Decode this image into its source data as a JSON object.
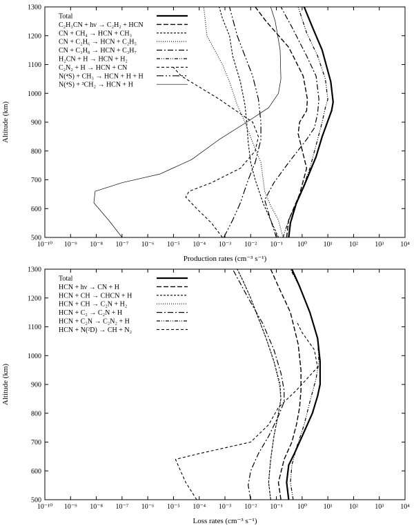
{
  "chart_data": [
    {
      "type": "line",
      "xlabel": "Production rates (cm⁻³ s⁻¹)",
      "ylabel": "Altitude (km)",
      "xscale": "log",
      "xlim": [
        1e-10,
        10000
      ],
      "ylim": [
        500,
        1300
      ],
      "x_ticks": [
        "10⁻¹⁰",
        "10⁻⁹",
        "10⁻⁸",
        "10⁻⁷",
        "10⁻⁶",
        "10⁻⁵",
        "10⁻⁴",
        "10⁻³",
        "10⁻²",
        "10⁻¹",
        "10⁰",
        "10¹",
        "10²",
        "10³",
        "10⁴"
      ],
      "y_ticks": [
        "500",
        "600",
        "700",
        "800",
        "900",
        "1000",
        "1100",
        "1200",
        "1300"
      ],
      "legend_position": "top-left",
      "series": [
        {
          "name": "Total",
          "dash": "solid",
          "width": 2.2,
          "points": [
            [
              0.3,
              500
            ],
            [
              0.35,
              550
            ],
            [
              0.6,
              620
            ],
            [
              1.2,
              680
            ],
            [
              3.5,
              780
            ],
            [
              6,
              850
            ],
            [
              8,
              880
            ],
            [
              14,
              940
            ],
            [
              16,
              970
            ],
            [
              13,
              1040
            ],
            [
              6,
              1150
            ],
            [
              2.5,
              1230
            ],
            [
              1.2,
              1300
            ]
          ]
        },
        {
          "name": "C₂H₃CN + hν → C₂H₂ + HCN",
          "dash": "7,3",
          "width": 1.4,
          "points": [
            [
              0.25,
              500
            ],
            [
              0.3,
              560
            ],
            [
              0.8,
              650
            ],
            [
              1.5,
              740
            ],
            [
              0.7,
              860
            ],
            [
              0.8,
              900
            ],
            [
              1.5,
              940
            ],
            [
              1.6,
              980
            ],
            [
              1.1,
              1060
            ],
            [
              0.3,
              1160
            ],
            [
              0.04,
              1250
            ],
            [
              0.015,
              1300
            ]
          ]
        },
        {
          "name": "CN + CH₄ → HCN + CH₃",
          "dash": "3,2",
          "width": 1.1,
          "points": [
            [
              0.12,
              500
            ],
            [
              0.06,
              560
            ],
            [
              0.03,
              620
            ],
            [
              0.015,
              700
            ],
            [
              0.01,
              760
            ],
            [
              0.008,
              830
            ],
            [
              0.007,
              900
            ],
            [
              0.006,
              960
            ],
            [
              0.004,
              1040
            ],
            [
              0.002,
              1130
            ],
            [
              0.0015,
              1200
            ],
            [
              0.0008,
              1260
            ],
            [
              0.0006,
              1300
            ]
          ]
        },
        {
          "name": "CN + C₂H₆ → HCN + C₂H₅",
          "dash": "1,2",
          "width": 1.1,
          "points": [
            [
              0.18,
              500
            ],
            [
              0.12,
              560
            ],
            [
              0.06,
              610
            ],
            [
              0.035,
              660
            ],
            [
              0.025,
              760
            ],
            [
              0.012,
              830
            ],
            [
              0.006,
              900
            ],
            [
              0.003,
              960
            ],
            [
              0.0015,
              1040
            ],
            [
              0.0008,
              1100
            ],
            [
              0.0004,
              1150
            ],
            [
              0.0002,
              1200
            ],
            [
              0.00015,
              1300
            ]
          ]
        },
        {
          "name": "CN + C₃H₈ → HCN + C₃H₇",
          "dash": "8,3,2,3",
          "width": 1.2,
          "points": [
            [
              0.1,
              500
            ],
            [
              0.06,
              560
            ],
            [
              0.035,
              630
            ],
            [
              0.08,
              690
            ],
            [
              0.3,
              760
            ],
            [
              1.5,
              840
            ],
            [
              3,
              880
            ],
            [
              4,
              930
            ],
            [
              4.5,
              980
            ],
            [
              3.5,
              1060
            ],
            [
              1.5,
              1130
            ],
            [
              0.4,
              1230
            ],
            [
              0.15,
              1300
            ]
          ]
        },
        {
          "name": "H₂CN + H → HCN + H₂",
          "dash": "5,2,1,2,1,2",
          "width": 1.2,
          "points": [
            [
              0.18,
              500
            ],
            [
              0.3,
              560
            ],
            [
              0.8,
              640
            ],
            [
              2,
              740
            ],
            [
              4,
              840
            ],
            [
              6,
              900
            ],
            [
              8,
              950
            ],
            [
              10,
              980
            ],
            [
              8,
              1050
            ],
            [
              4,
              1130
            ],
            [
              1.5,
              1210
            ],
            [
              0.7,
              1300
            ]
          ]
        },
        {
          "name": "C₂N₂ + H → HCN + CN",
          "dash": "4,3",
          "width": 1.1,
          "points": [
            [
              0.0008,
              500
            ],
            [
              0.0003,
              550
            ],
            [
              8e-05,
              600
            ],
            [
              3e-05,
              640
            ],
            [
              4e-05,
              660
            ],
            [
              0.0003,
              690
            ],
            [
              0.004,
              740
            ],
            [
              0.015,
              800
            ],
            [
              0.02,
              850
            ],
            [
              0.012,
              900
            ],
            [
              0.0006,
              980
            ],
            [
              2e-05,
              1060
            ],
            [
              1e-05,
              1090
            ]
          ]
        },
        {
          "name": "N(⁴S) + CH₃ → HCN + H + H",
          "dash": "10,3,2,3,2,3",
          "width": 1.2,
          "points": [
            [
              0.0009,
              500
            ],
            [
              0.002,
              560
            ],
            [
              0.004,
              620
            ],
            [
              0.008,
              700
            ],
            [
              0.015,
              760
            ],
            [
              0.025,
              840
            ],
            [
              0.025,
              900
            ],
            [
              0.02,
              980
            ],
            [
              0.012,
              1060
            ],
            [
              0.006,
              1130
            ],
            [
              0.003,
              1200
            ],
            [
              0.0015,
              1300
            ]
          ]
        },
        {
          "name": "N(⁴S) + ³CH₂ → HCN + H",
          "dash": "solid",
          "width": 0.7,
          "points": [
            [
              1e-07,
              500
            ],
            [
              3e-08,
              560
            ],
            [
              8e-09,
              620
            ],
            [
              9e-09,
              660
            ],
            [
              1e-07,
              690
            ],
            [
              3e-06,
              720
            ],
            [
              5e-05,
              770
            ],
            [
              0.0006,
              840
            ],
            [
              0.007,
              900
            ],
            [
              0.05,
              950
            ],
            [
              0.12,
              1000
            ],
            [
              0.15,
              1050
            ],
            [
              0.14,
              1150
            ],
            [
              0.09,
              1250
            ],
            [
              0.06,
              1300
            ]
          ]
        }
      ]
    },
    {
      "type": "line",
      "xlabel": "Loss rates (cm⁻³ s⁻¹)",
      "ylabel": "Altitude (km)",
      "xscale": "log",
      "xlim": [
        1e-10,
        10000
      ],
      "ylim": [
        500,
        1300
      ],
      "x_ticks": [
        "10⁻¹⁰",
        "10⁻⁹",
        "10⁻⁸",
        "10⁻⁷",
        "10⁻⁶",
        "10⁻⁵",
        "10⁻⁴",
        "10⁻³",
        "10⁻²",
        "10⁻¹",
        "10⁰",
        "10¹",
        "10²",
        "10³",
        "10⁴"
      ],
      "y_ticks": [
        "500",
        "600",
        "700",
        "800",
        "900",
        "1000",
        "1100",
        "1200",
        "1300"
      ],
      "legend_position": "top-left",
      "series": [
        {
          "name": "Total",
          "dash": "solid",
          "width": 2.2,
          "points": [
            [
              0.3,
              500
            ],
            [
              0.25,
              560
            ],
            [
              0.3,
              620
            ],
            [
              0.5,
              660
            ],
            [
              1,
              720
            ],
            [
              2.5,
              800
            ],
            [
              4,
              860
            ],
            [
              5,
              900
            ],
            [
              5,
              980
            ],
            [
              4,
              1060
            ],
            [
              2,
              1150
            ],
            [
              0.8,
              1240
            ],
            [
              0.4,
              1300
            ]
          ]
        },
        {
          "name": "HCN + hν → CN + H",
          "dash": "7,3",
          "width": 1.4,
          "points": [
            [
              0.15,
              500
            ],
            [
              0.12,
              560
            ],
            [
              0.2,
              640
            ],
            [
              0.4,
              700
            ],
            [
              0.6,
              760
            ],
            [
              0.8,
              820
            ],
            [
              0.9,
              880
            ],
            [
              0.9,
              950
            ],
            [
              0.7,
              1040
            ],
            [
              0.35,
              1150
            ],
            [
              0.12,
              1240
            ],
            [
              0.06,
              1300
            ]
          ]
        },
        {
          "name": "HCN + CH → CHCN + H",
          "dash": "3,2",
          "width": 1.1,
          "points": [
            [
              0.06,
              500
            ],
            [
              0.05,
              560
            ],
            [
              0.06,
              640
            ],
            [
              0.08,
              720
            ],
            [
              0.12,
              800
            ],
            [
              0.15,
              850
            ],
            [
              0.14,
              900
            ],
            [
              0.08,
              980
            ],
            [
              0.04,
              1060
            ],
            [
              0.02,
              1130
            ],
            [
              0.01,
              1200
            ],
            [
              0.005,
              1260
            ],
            [
              0.003,
              1300
            ]
          ]
        },
        {
          "name": "HCN + CH → C₂N + H₂",
          "dash": "1,2",
          "width": 1.1,
          "points": [
            [
              0.06,
              500
            ],
            [
              0.05,
              560
            ],
            [
              0.06,
              640
            ],
            [
              0.08,
              720
            ],
            [
              0.12,
              800
            ],
            [
              0.15,
              850
            ],
            [
              0.13,
              900
            ],
            [
              0.08,
              980
            ],
            [
              0.04,
              1060
            ],
            [
              0.02,
              1130
            ],
            [
              0.01,
              1200
            ],
            [
              0.005,
              1260
            ],
            [
              0.003,
              1300
            ]
          ]
        },
        {
          "name": "HCN + C₂ → C₂N + H",
          "dash": "8,3,2,3",
          "width": 1.2,
          "points": [
            [
              0.01,
              500
            ],
            [
              0.008,
              550
            ],
            [
              0.01,
              600
            ],
            [
              0.02,
              660
            ],
            [
              0.05,
              720
            ],
            [
              0.12,
              790
            ],
            [
              0.2,
              840
            ],
            [
              0.2,
              880
            ],
            [
              0.15,
              940
            ],
            [
              0.08,
              1020
            ],
            [
              0.03,
              1110
            ],
            [
              0.008,
              1200
            ],
            [
              0.002,
              1300
            ]
          ]
        },
        {
          "name": "HCN + C₂N → C₂N₂ + H",
          "dash": "5,2,1,2,1,2",
          "width": 1.2,
          "points": [
            [
              0.45,
              500
            ],
            [
              0.35,
              560
            ],
            [
              0.4,
              620
            ],
            [
              0.6,
              680
            ],
            [
              1.2,
              760
            ],
            [
              2,
              840
            ],
            [
              3.5,
              920
            ],
            [
              4.5,
              980
            ],
            [
              4,
              1060
            ],
            [
              2,
              1150
            ],
            [
              0.8,
              1240
            ],
            [
              0.35,
              1300
            ]
          ]
        },
        {
          "name": "HCN + N(²D) → CH + N₂",
          "dash": "4,3",
          "width": 1.1,
          "points": [
            [
              8e-05,
              500
            ],
            [
              3e-05,
              560
            ],
            [
              1.5e-05,
              620
            ],
            [
              1.2e-05,
              640
            ],
            [
              0.0001,
              660
            ],
            [
              0.01,
              700
            ],
            [
              0.05,
              760
            ],
            [
              0.12,
              820
            ],
            [
              0.6,
              880
            ],
            [
              4,
              960
            ],
            [
              3,
              1020
            ],
            [
              1,
              1080
            ],
            [
              0.6,
              1120
            ]
          ]
        }
      ]
    }
  ]
}
